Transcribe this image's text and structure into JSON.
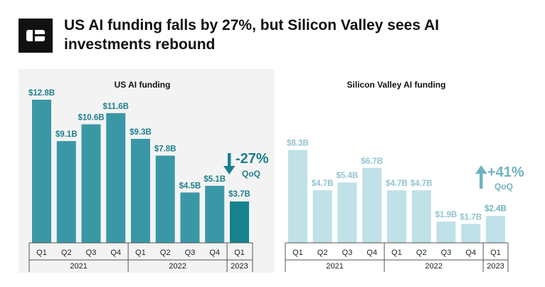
{
  "header": {
    "title": "US AI funding falls by 27%, but Silicon Valley sees AI investments rebound",
    "logo_icon": "cb-logo-icon"
  },
  "colors": {
    "us_bar": "#3a98a6",
    "us_bar_last": "#17838f",
    "us_text": "#1d7f8c",
    "sv_bar": "#bfe1e7",
    "sv_text": "#8fc4cd",
    "sv_text_dark": "#6fb4bf",
    "axis": "#555555"
  },
  "chart_data": [
    {
      "type": "bar",
      "title": "US AI funding",
      "categories": [
        "Q1",
        "Q2",
        "Q3",
        "Q4",
        "Q1",
        "Q2",
        "Q3",
        "Q4",
        "Q1"
      ],
      "years": [
        {
          "label": "2021",
          "span": 4
        },
        {
          "label": "2022",
          "span": 4
        },
        {
          "label": "2023",
          "span": 1
        }
      ],
      "values": [
        12.8,
        9.1,
        10.6,
        11.6,
        9.3,
        7.8,
        4.5,
        5.1,
        3.7
      ],
      "labels": [
        "$12.8B",
        "$9.1B",
        "$10.6B",
        "$11.6B",
        "$9.3B",
        "$7.8B",
        "$4.5B",
        "$5.1B",
        "$3.7B"
      ],
      "ylim": [
        0,
        12.8
      ],
      "annotation": {
        "change": "-27%",
        "period": "QoQ",
        "direction": "down"
      }
    },
    {
      "type": "bar",
      "title": "Silicon Valley AI funding",
      "categories": [
        "Q1",
        "Q2",
        "Q3",
        "Q4",
        "Q1",
        "Q2",
        "Q3",
        "Q4",
        "Q1"
      ],
      "years": [
        {
          "label": "2021",
          "span": 4
        },
        {
          "label": "2022",
          "span": 4
        },
        {
          "label": "2023",
          "span": 1
        }
      ],
      "values": [
        8.3,
        4.7,
        5.4,
        6.7,
        4.7,
        4.7,
        1.9,
        1.7,
        2.4
      ],
      "labels": [
        "$8.3B",
        "$4.7B",
        "$5.4B",
        "$6.7B",
        "$4.7B",
        "$4.7B",
        "$1.9B",
        "$1.7B",
        "$2.4B"
      ],
      "ylim": [
        0,
        12.8
      ],
      "annotation": {
        "change": "+41%",
        "period": "QoQ",
        "direction": "up"
      }
    }
  ]
}
